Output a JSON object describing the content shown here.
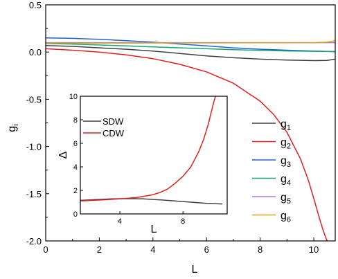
{
  "chart_data": [
    {
      "type": "line",
      "xlabel": "L",
      "ylabel": "g",
      "ylabel_sub": "i",
      "xlim": [
        0,
        10.8
      ],
      "ylim": [
        -2.0,
        0.5
      ],
      "xticks": [
        0,
        2,
        4,
        6,
        8,
        10
      ],
      "yticks": [
        0.5,
        0.0,
        -0.5,
        -1.0,
        -1.5,
        -2.0
      ],
      "ytick_labels": [
        "0.5",
        "0.0",
        "-0.5",
        "-1.0",
        "-1.5",
        "-2.0"
      ],
      "legend_position": "right",
      "series": [
        {
          "name": "g",
          "sub": "1",
          "color": "#404040",
          "x": [
            0,
            1,
            2,
            3,
            4,
            5,
            6,
            7,
            8,
            9,
            10,
            10.5,
            10.8
          ],
          "y": [
            0.07,
            0.06,
            0.045,
            0.03,
            0.01,
            -0.015,
            -0.04,
            -0.06,
            -0.075,
            -0.085,
            -0.09,
            -0.088,
            -0.075
          ]
        },
        {
          "name": "g",
          "sub": "2",
          "color": "#e02020",
          "x": [
            0,
            1,
            2,
            3,
            4,
            5,
            6,
            7,
            8,
            8.5,
            9,
            9.5,
            9.8,
            10.0,
            10.2,
            10.35,
            10.45,
            10.5
          ],
          "y": [
            0.035,
            0.02,
            0.0,
            -0.03,
            -0.07,
            -0.13,
            -0.21,
            -0.33,
            -0.52,
            -0.66,
            -0.85,
            -1.13,
            -1.36,
            -1.55,
            -1.75,
            -1.89,
            -1.97,
            -2.0
          ]
        },
        {
          "name": "g",
          "sub": "3",
          "color": "#1f62d0",
          "x": [
            0,
            1,
            2,
            3,
            4,
            5,
            6,
            7,
            8,
            9,
            10,
            10.8
          ],
          "y": [
            0.15,
            0.145,
            0.135,
            0.12,
            0.105,
            0.085,
            0.065,
            0.045,
            0.03,
            0.02,
            0.01,
            0.005
          ]
        },
        {
          "name": "g",
          "sub": "4",
          "color": "#1aa37a",
          "x": [
            0,
            1,
            2,
            3,
            4,
            5,
            6,
            7,
            8,
            9,
            10,
            10.8
          ],
          "y": [
            0.09,
            0.085,
            0.075,
            0.065,
            0.055,
            0.045,
            0.035,
            0.025,
            0.018,
            0.012,
            0.008,
            0.005
          ]
        },
        {
          "name": "g",
          "sub": "5",
          "color": "#b07ad8",
          "x": [
            0,
            2,
            4,
            6,
            8,
            10,
            10.8
          ],
          "y": [
            0.1,
            0.1,
            0.1,
            0.1,
            0.1,
            0.1,
            0.1
          ]
        },
        {
          "name": "g",
          "sub": "6",
          "color": "#d8a020",
          "x": [
            0,
            2,
            4,
            6,
            8,
            10,
            10.5,
            10.8
          ],
          "y": [
            0.095,
            0.095,
            0.096,
            0.097,
            0.098,
            0.1,
            0.105,
            0.12
          ]
        }
      ]
    },
    {
      "type": "line",
      "xlabel": "L",
      "ylabel": "Δ",
      "xlim": [
        1.5,
        10.8
      ],
      "ylim": [
        0,
        10
      ],
      "xticks": [
        4,
        8
      ],
      "yticks": [
        0,
        2,
        4,
        6,
        8,
        10
      ],
      "legend_position": "top-left",
      "series": [
        {
          "name": "SDW",
          "color": "#404040",
          "x": [
            1.5,
            2.5,
            3.5,
            4.5,
            5.5,
            6.5,
            7.5,
            8.5,
            9.5,
            10.5
          ],
          "y": [
            1.15,
            1.22,
            1.28,
            1.3,
            1.28,
            1.2,
            1.1,
            1.0,
            0.9,
            0.85
          ]
        },
        {
          "name": "CDW",
          "color": "#e02020",
          "x": [
            1.5,
            3.0,
            4.0,
            5.0,
            6.0,
            6.5,
            7.0,
            7.5,
            8.0,
            8.5,
            9.0,
            9.3,
            9.6,
            9.8,
            9.95,
            10.1
          ],
          "y": [
            1.1,
            1.2,
            1.28,
            1.38,
            1.6,
            1.8,
            2.1,
            2.6,
            3.2,
            4.0,
            5.3,
            6.3,
            7.6,
            8.7,
            9.5,
            10.2
          ]
        }
      ]
    }
  ]
}
